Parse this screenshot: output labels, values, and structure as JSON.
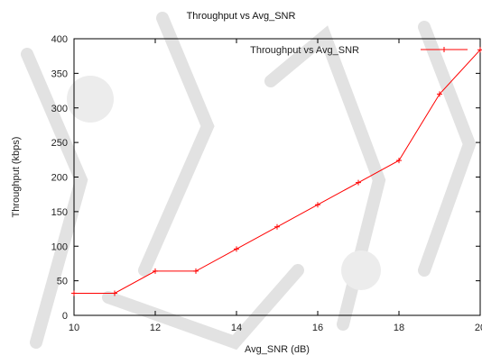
{
  "chart_data": {
    "type": "line",
    "title": "Throughput vs Avg_SNR",
    "xlabel": "Avg_SNR (dB)",
    "ylabel": "Throughput (kbps)",
    "xlim": [
      10,
      20
    ],
    "ylim": [
      0,
      400
    ],
    "x_ticks": [
      10,
      12,
      14,
      16,
      18,
      20
    ],
    "y_ticks": [
      0,
      50,
      100,
      150,
      200,
      250,
      300,
      350,
      400
    ],
    "grid": false,
    "legend_position": "top-right",
    "series": [
      {
        "name": "Throughput vs Avg_SNR",
        "color": "#ff0000",
        "x": [
          10,
          11,
          12,
          13,
          14,
          15,
          16,
          17,
          18,
          19,
          20
        ],
        "y": [
          32,
          32,
          64,
          64,
          96,
          128,
          160,
          192,
          224,
          320,
          384
        ]
      }
    ]
  },
  "colors": {
    "series": "#ff0000",
    "axis": "#000000",
    "watermark": "#dcdcdc"
  }
}
